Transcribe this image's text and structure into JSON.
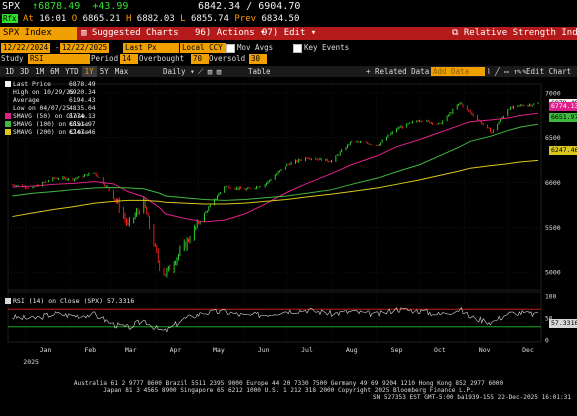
{
  "quote": {
    "ticker": "SPX",
    "arrow": "↑",
    "last": "6878.49",
    "change": "+43.99",
    "range_low": "6842.34",
    "range_sep": "/",
    "range_high": "6904.70",
    "badge": "Rfx",
    "at_label": "At",
    "time": "16:01",
    "o_label": "O",
    "open": "6865.21",
    "h_label": "H",
    "high": "6882.03",
    "l_label": "L",
    "low": "6855.74",
    "prev_label": "Prev",
    "prev": "6834.50"
  },
  "toolbar": {
    "security": "SPX Index",
    "suggested_charts": "Suggested Charts",
    "actions": "Actions",
    "edit": "Edit",
    "study_title": "Relative Strength Index"
  },
  "settings": {
    "start_date": "12/22/2024",
    "end_date": "12/22/2025",
    "price_type": "Last Px",
    "currency": "Local CCY",
    "mov_avgs": "Mov Avgs",
    "key_events": "Key Events",
    "study_label": "Study",
    "study": "RSI",
    "period_label": "Period",
    "period": "14",
    "overbought_label": "Overbought",
    "overbought": "70",
    "oversold_label": "Oversold",
    "oversold": "30"
  },
  "ranges": {
    "items": [
      "1D",
      "3D",
      "1M",
      "6M",
      "YTD",
      "1Y",
      "5Y",
      "Max"
    ],
    "selected": "1Y",
    "frequency": "Daily",
    "table": "Table",
    "related_data": "Related Data",
    "add_data": "Add Data",
    "edit_chart": "Edit Chart"
  },
  "legend": {
    "last_price": "Last Price",
    "last_price_val": "6878.49",
    "high_label": "High on 10/29/25",
    "high_val": "6920.34",
    "average_label": "Average",
    "average_val": "6194.43",
    "low_label": "Low on 04/07/25",
    "low_val": "4835.04",
    "smavg50": "SMAVG (50)  on Close",
    "smavg50_val": "6774.13",
    "smavg100": "SMAVG (100) on Close",
    "smavg100_val": "6651.97",
    "smavg200": "SMAVG (200) on Close",
    "smavg200_val": "6247.46"
  },
  "rsi_legend": {
    "label": "RSI (14)  on Close (SPX)",
    "value": "57.3316"
  },
  "colors": {
    "price": "#f2f2f2",
    "up_bar": "#2ee02e",
    "down_bar": "#ff2020",
    "sma50": "#e0208a",
    "sma100": "#3fb83f",
    "sma200": "#d9c81a",
    "rsi": "#d8d8d8",
    "overbought_line": "#e02020",
    "oversold_line": "#20c020"
  },
  "axes": {
    "price_ticks": [
      "7000",
      "6500",
      "6000",
      "5500",
      "5000"
    ],
    "rsi_ticks": [
      "100",
      "50",
      "0"
    ],
    "months": [
      "Jan",
      "Feb",
      "Mar",
      "Apr",
      "May",
      "Jun",
      "Jul",
      "Aug",
      "Sep",
      "Oct",
      "Nov",
      "Dec"
    ],
    "year": "2025"
  },
  "tags": {
    "last": "6878.49",
    "sma50": "6774.13",
    "sma100": "6651.97",
    "sma200": "6247.46",
    "rsi": "57.3316"
  },
  "chart_data": {
    "type": "line",
    "x": [
      "2024-12-23",
      "2025-01-06",
      "2025-01-21",
      "2025-02-03",
      "2025-02-18",
      "2025-03-03",
      "2025-03-13",
      "2025-03-24",
      "2025-04-04",
      "2025-04-08",
      "2025-04-21",
      "2025-05-05",
      "2025-05-19",
      "2025-06-02",
      "2025-06-16",
      "2025-07-01",
      "2025-07-15",
      "2025-08-01",
      "2025-08-15",
      "2025-09-02",
      "2025-09-15",
      "2025-10-01",
      "2025-10-15",
      "2025-10-29",
      "2025-11-05",
      "2025-11-20",
      "2025-12-01",
      "2025-12-10",
      "2025-12-22"
    ],
    "series": [
      {
        "name": "Last Price",
        "values": [
          5975,
          5940,
          6050,
          6040,
          6110,
          5860,
          5520,
          5770,
          5070,
          4980,
          5290,
          5650,
          5960,
          5920,
          5980,
          6200,
          6280,
          6240,
          6460,
          6420,
          6600,
          6700,
          6650,
          6890,
          6780,
          6560,
          6820,
          6860,
          6878
        ]
      },
      {
        "name": "SMAVG (50)",
        "values": [
          5950,
          5960,
          5980,
          5990,
          6010,
          5985,
          5900,
          5840,
          5720,
          5650,
          5600,
          5560,
          5580,
          5650,
          5760,
          5890,
          5990,
          6100,
          6200,
          6300,
          6400,
          6480,
          6560,
          6640,
          6680,
          6700,
          6720,
          6750,
          6774
        ]
      },
      {
        "name": "SMAVG (100)",
        "values": [
          5850,
          5880,
          5900,
          5920,
          5940,
          5945,
          5940,
          5930,
          5880,
          5850,
          5830,
          5810,
          5800,
          5810,
          5830,
          5850,
          5880,
          5920,
          5980,
          6050,
          6120,
          6200,
          6300,
          6400,
          6460,
          6520,
          6580,
          6620,
          6652
        ]
      },
      {
        "name": "SMAVG (200)",
        "values": [
          5620,
          5660,
          5700,
          5730,
          5770,
          5790,
          5800,
          5800,
          5790,
          5780,
          5770,
          5760,
          5760,
          5770,
          5790,
          5810,
          5840,
          5870,
          5900,
          5940,
          5980,
          6030,
          6080,
          6130,
          6160,
          6190,
          6210,
          6230,
          6247
        ]
      },
      {
        "name": "RSI (14)",
        "values": [
          52,
          48,
          60,
          55,
          58,
          35,
          28,
          45,
          22,
          20,
          48,
          62,
          64,
          55,
          58,
          66,
          68,
          60,
          64,
          58,
          70,
          66,
          58,
          70,
          52,
          40,
          60,
          62,
          57
        ]
      }
    ],
    "ylim": [
      4800,
      7100
    ],
    "rsi_ylim": [
      0,
      100
    ],
    "overbought": 70,
    "oversold": 30
  },
  "footer": {
    "line1": "Australia 61 2 9777 8600 Brazil 5511 2395 9000 Europe 44 20 7330 7500 Germany 49 69 9204 1210 Hong Kong 852 2977 6000",
    "line2": "Japan 81 3 4565 8900       Singapore 65 6212 1000       U.S. 1 212 318 2000       Copyright 2025 Bloomberg Finance L.P.",
    "line3": "SN 527353 EST  GMT-5:00 ba1939-155 22-Dec-2025 16:01:31"
  }
}
